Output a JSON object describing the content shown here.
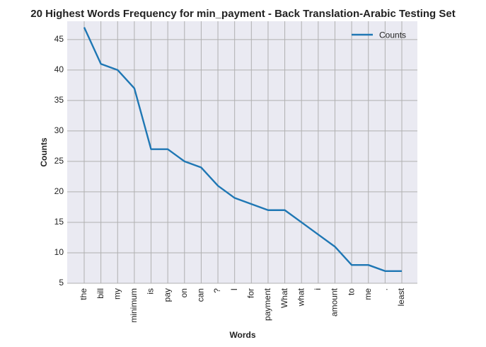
{
  "chart_data": {
    "type": "line",
    "title": "20 Highest Words Frequency for min_payment - Back Translation-Arabic Testing Set",
    "xlabel": "Words",
    "ylabel": "Counts",
    "categories": [
      "the",
      "bill",
      "my",
      "minimum",
      "is",
      "pay",
      "on",
      "can",
      "?",
      "I",
      "for",
      "payment",
      "What",
      "what",
      "i",
      "amount",
      "to",
      "me",
      ".",
      "least"
    ],
    "series": [
      {
        "name": "Counts",
        "values": [
          47,
          41,
          40,
          37,
          27,
          27,
          25,
          24,
          21,
          19,
          18,
          17,
          17,
          15,
          13,
          11,
          8,
          8,
          7,
          7
        ],
        "color": "#1f77b4"
      }
    ],
    "ylim": [
      5,
      48
    ],
    "yticks": [
      5,
      10,
      15,
      20,
      25,
      30,
      35,
      40,
      45
    ],
    "grid": true,
    "legend_position": "top-right",
    "background_color": "#eaeaf2",
    "grid_color": "#b0b0b0"
  }
}
